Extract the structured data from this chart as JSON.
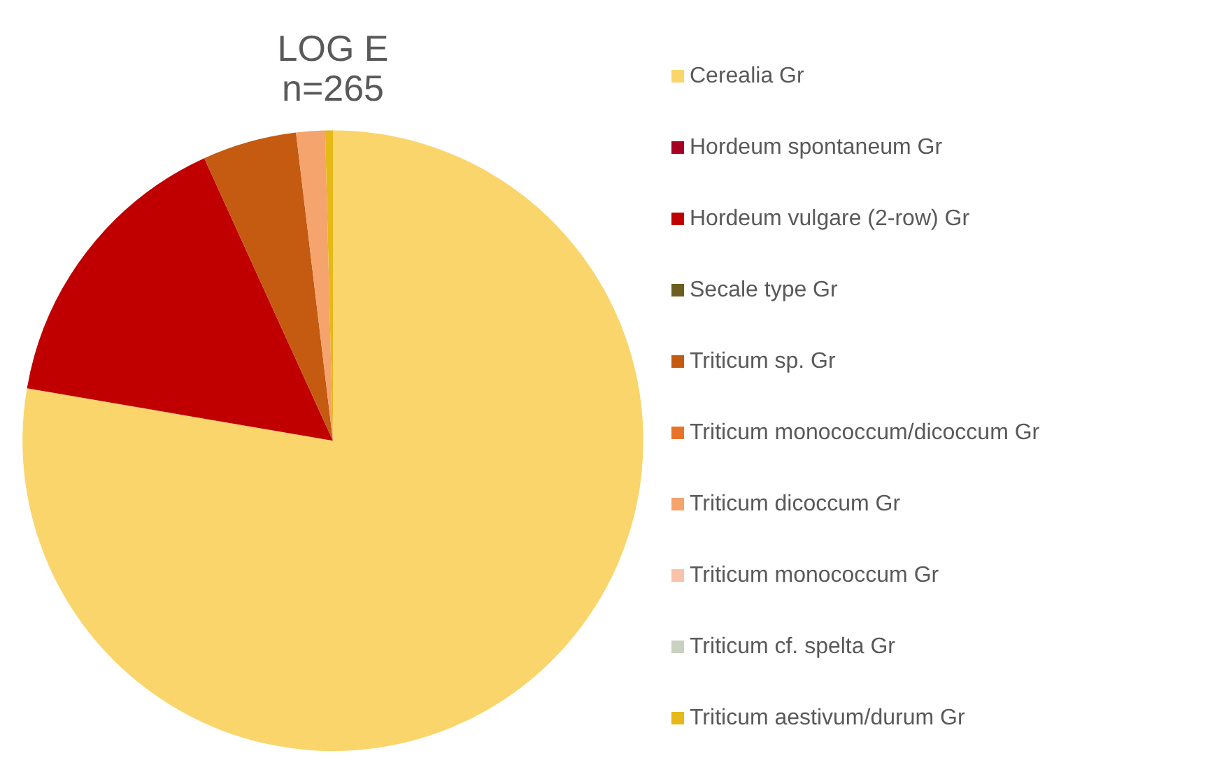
{
  "chart_data": {
    "type": "pie",
    "title": "LOG E\nn=265",
    "categories": [
      "Cerealia Gr",
      "Hordeum spontaneum Gr",
      "Hordeum vulgare (2-row) Gr",
      "Secale type Gr",
      "Triticum sp. Gr",
      "Triticum monococcum/dicoccum Gr",
      "Triticum dicoccum Gr",
      "Triticum monococcum Gr",
      "Triticum cf. spelta Gr",
      "Triticum aestivum/durum Gr"
    ],
    "values": [
      77.7,
      0,
      15.5,
      0,
      4.9,
      0,
      1.5,
      0,
      0,
      0.4
    ],
    "colors": [
      "#fad56b",
      "#a50021",
      "#c00000",
      "#6b5e1e",
      "#c55a11",
      "#e8742a",
      "#f4a46c",
      "#f8c3a8",
      "#c9d1c0",
      "#e6b818"
    ],
    "legend": "right"
  }
}
